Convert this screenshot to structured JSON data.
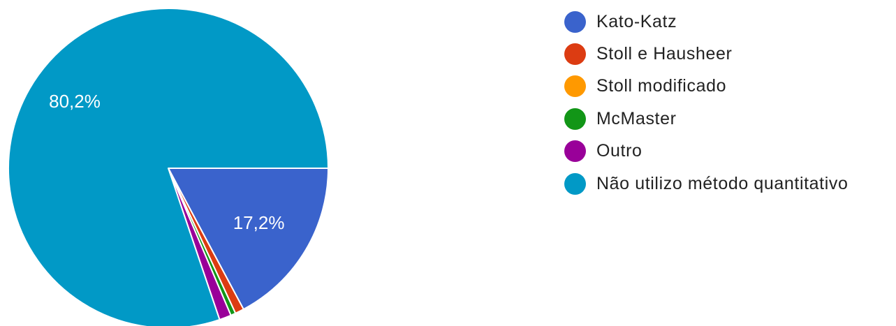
{
  "chart_data": {
    "type": "pie",
    "slices": [
      {
        "label": "Kato-Katz",
        "value": 17.2,
        "display": "17,2%",
        "color": "#3a63cc"
      },
      {
        "label": "Stoll e Hausheer",
        "value": 0.9,
        "display": "",
        "color": "#dc3c12"
      },
      {
        "label": "Stoll modificado",
        "value": 0,
        "display": "",
        "color": "#ff9900"
      },
      {
        "label": "McMaster",
        "value": 0.5,
        "display": "",
        "color": "#129617"
      },
      {
        "label": "Outro",
        "value": 1.2,
        "display": "",
        "color": "#990099"
      },
      {
        "label": "Não utilizo método quantitativo",
        "value": 80.2,
        "display": "80,2%",
        "color": "#0199c6"
      }
    ],
    "legend_position": "right",
    "start_angle_deg": 90,
    "direction": "clockwise"
  }
}
